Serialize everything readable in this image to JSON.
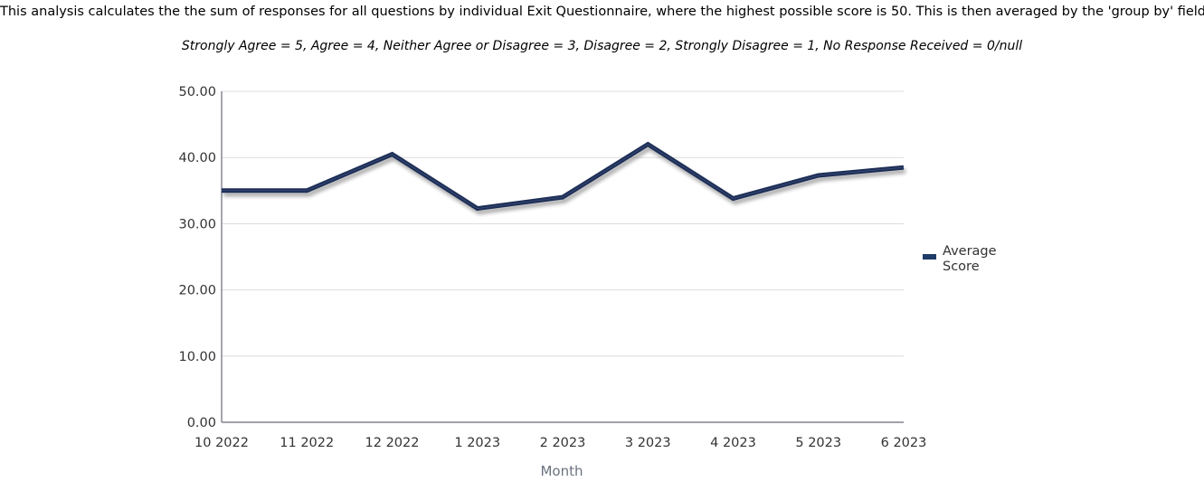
{
  "description": "This analysis calculates the the sum of responses for all questions by individual Exit Questionnaire, where the highest possible score is 50. This is then averaged by the 'group by' fields.",
  "scale_note": "Strongly Agree = 5, Agree = 4, Neither Agree or Disagree = 3, Disagree = 2, Strongly Disagree = 1, No Response Received = 0/null",
  "chart_data": {
    "type": "line",
    "categories": [
      "10 2022",
      "11 2022",
      "12 2022",
      "1 2023",
      "2 2023",
      "3 2023",
      "4 2023",
      "5 2023",
      "6 2023"
    ],
    "series": [
      {
        "name": "Average Score",
        "values": [
          35.0,
          35.0,
          40.5,
          32.3,
          34.0,
          42.0,
          33.8,
          37.3,
          38.5
        ]
      }
    ],
    "xlabel": "Month",
    "ylabel": "",
    "ylim": [
      0,
      50
    ],
    "yticks": [
      "0.00",
      "10.00",
      "20.00",
      "30.00",
      "40.00",
      "50.00"
    ],
    "grid": true,
    "legend_position": "right",
    "line_color": "#1f2f57"
  }
}
